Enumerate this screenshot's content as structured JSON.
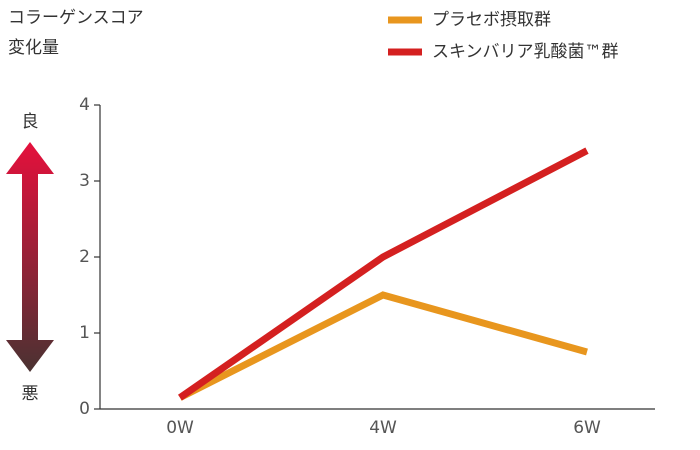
{
  "chart_data": {
    "type": "line",
    "title": "コラーゲンスコア",
    "subtitle": "変化量",
    "annotations": {
      "top": "良",
      "bottom": "悪"
    },
    "categories": [
      "0W",
      "4W",
      "6W"
    ],
    "series": [
      {
        "name": "プラセボ摂取群",
        "color": "#e8961e",
        "values": [
          0.15,
          1.5,
          0.75
        ]
      },
      {
        "name": "スキンバリア乳酸菌™群",
        "color": "#d42020",
        "values": [
          0.15,
          2.0,
          3.4
        ]
      }
    ],
    "ylim": [
      0,
      4
    ],
    "yticks": [
      0,
      1,
      2,
      3,
      4
    ]
  }
}
